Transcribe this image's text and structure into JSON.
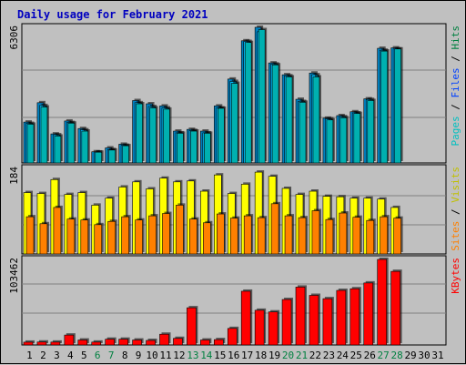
{
  "chart_data": {
    "type": "bar",
    "title": "Daily usage for February 2021",
    "days": [
      "1",
      "2",
      "3",
      "4",
      "5",
      "6",
      "7",
      "8",
      "9",
      "10",
      "11",
      "12",
      "13",
      "14",
      "15",
      "16",
      "17",
      "18",
      "19",
      "20",
      "21",
      "22",
      "23",
      "24",
      "25",
      "26",
      "27",
      "28",
      "29",
      "30",
      "31"
    ],
    "weekend_days": [
      "6",
      "7",
      "13",
      "14",
      "20",
      "21",
      "27",
      "28"
    ],
    "colors": {
      "background": "#c0c0c0",
      "plot_bg": "#c0c0c0",
      "title": "#0000c0",
      "weekday": "#000000",
      "weekend": "#008040",
      "hits": "#00c0ff",
      "files": "#0080c0",
      "pages": "#00b0b0",
      "visits": "#ffff00",
      "sites": "#ff8000",
      "kbytes": "#ff0000"
    },
    "panels": [
      {
        "ymax_label": "6306",
        "ymax": 6306,
        "right_label": [
          {
            "text": "Pages",
            "color": "#00c0c0"
          },
          {
            "text": " / ",
            "color": "#000000"
          },
          {
            "text": "Files",
            "color": "#0040ff"
          },
          {
            "text": " / ",
            "color": "#000000"
          },
          {
            "text": "Hits",
            "color": "#008040"
          }
        ],
        "series": [
          {
            "name": "Hits",
            "values": [
              1900,
              2800,
              1350,
              1950,
              1600,
              520,
              700,
              870,
              2900,
              2750,
              2650,
              1480,
              1560,
              1480,
              2650,
              3900,
              5680,
              6306,
              4650,
              4100,
              2960,
              4180,
              2080,
              2200,
              2380,
              2980,
              5330,
              5350,
              null,
              null,
              null
            ]
          },
          {
            "name": "Files",
            "values": [
              1840,
              2670,
              1310,
              1880,
              1540,
              510,
              620,
              820,
              2800,
              2620,
              2560,
              1400,
              1510,
              1400,
              2560,
              3790,
              5650,
              6100,
              4600,
              4050,
              2860,
              4100,
              2050,
              2150,
              2330,
              2950,
              5240,
              5300,
              null,
              null,
              null
            ]
          },
          {
            "name": "Pages",
            "values": [
              1800,
              2600,
              1250,
              1850,
              1480,
              500,
              600,
              800,
              2750,
              2560,
              2500,
              1380,
              1480,
              1380,
              2540,
              3700,
              5600,
              6200,
              4560,
              4000,
              2820,
              4000,
              2000,
              2100,
              2300,
              2900,
              5200,
              5300,
              null,
              null,
              null
            ]
          }
        ]
      },
      {
        "ymax_label": "184",
        "ymax": 184,
        "right_label": [
          {
            "text": "Sites",
            "color": "#ff8000"
          },
          {
            "text": " / ",
            "color": "#000000"
          },
          {
            "text": "Visits",
            "color": "#c0c000"
          }
        ],
        "series": [
          {
            "name": "Visits",
            "values": [
              132,
              130,
              160,
              128,
              132,
              105,
              120,
              144,
              155,
              140,
              163,
              155,
              157,
              135,
              170,
              130,
              150,
              176,
              167,
              141,
              128,
              135,
              124,
              123,
              120,
              120,
              118,
              100,
              null,
              null,
              null
            ]
          },
          {
            "name": "Sites",
            "values": [
              80,
              65,
              100,
              75,
              73,
              63,
              70,
              80,
              73,
              82,
              87,
              105,
              75,
              67,
              86,
              77,
              82,
              78,
              108,
              82,
              78,
              93,
              74,
              88,
              79,
              72,
              80,
              77,
              null,
              null,
              null
            ]
          }
        ]
      },
      {
        "ymax_label": "103462",
        "ymax": 103462,
        "right_label": [
          {
            "text": "KBytes",
            "color": "#ff0000"
          }
        ],
        "series": [
          {
            "name": "KBytes",
            "values": [
              3400,
              3600,
              3500,
              12000,
              6000,
              3500,
              7000,
              7000,
              6000,
              5500,
              13000,
              8000,
              45000,
              6000,
              6500,
              20000,
              65000,
              42000,
              40000,
              55000,
              70000,
              60000,
              56000,
              66000,
              68000,
              75000,
              103462,
              89000,
              null,
              null,
              null
            ]
          }
        ]
      }
    ]
  }
}
